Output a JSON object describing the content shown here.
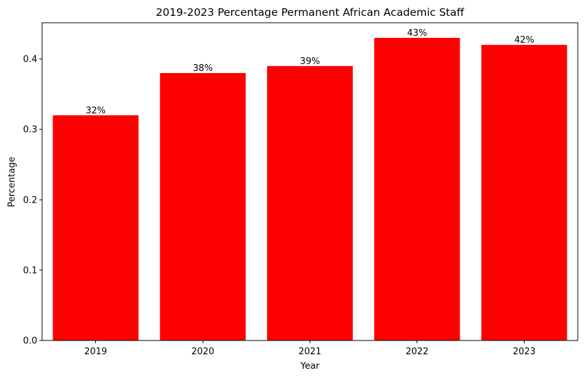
{
  "chart_data": {
    "type": "bar",
    "title": "2019-2023 Percentage Permanent African Academic Staff",
    "xlabel": "Year",
    "ylabel": "Percentage",
    "categories": [
      "2019",
      "2020",
      "2021",
      "2022",
      "2023"
    ],
    "values": [
      0.32,
      0.38,
      0.39,
      0.43,
      0.42
    ],
    "data_labels": [
      "32%",
      "38%",
      "39%",
      "43%",
      "42%"
    ],
    "yticks": [
      0.0,
      0.1,
      0.2,
      0.3,
      0.4
    ],
    "ytick_labels": [
      "0.0",
      "0.1",
      "0.2",
      "0.3",
      "0.4"
    ],
    "ylim": [
      0,
      0.4515
    ],
    "bar_color": "#ff0000",
    "grid": false,
    "legend": "none"
  }
}
